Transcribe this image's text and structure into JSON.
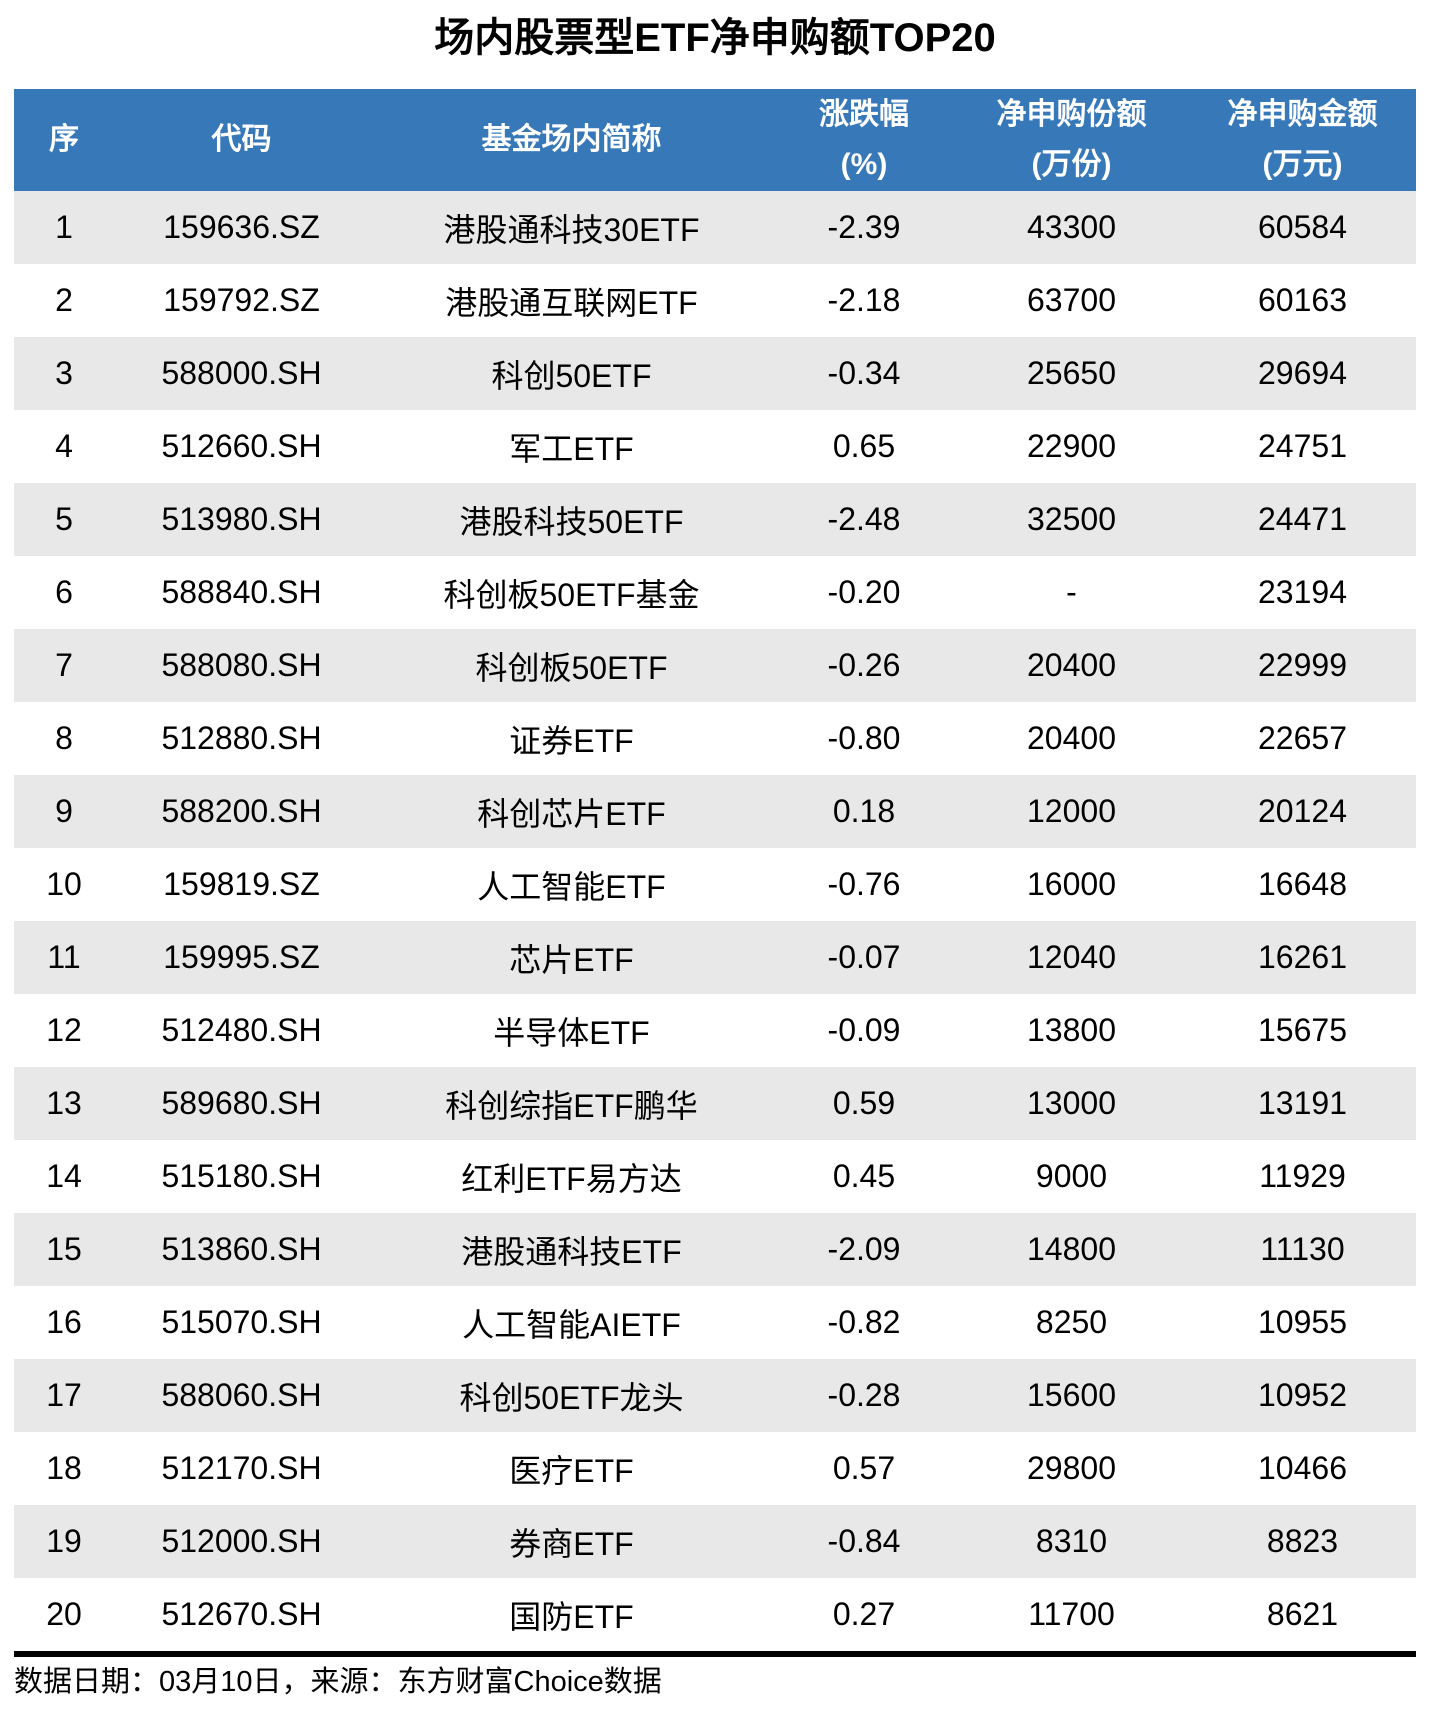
{
  "title": "场内股票型ETF净申购额TOP20",
  "footer": {
    "text": "数据日期：03月10日，来源：东方财富Choice数据"
  },
  "colors": {
    "header_bg": "#3778B8",
    "header_text": "#FFFFFF",
    "row_alt_bg": "#E8E8E8",
    "separator": "#000000"
  },
  "chart_data": {
    "type": "table",
    "title": "场内股票型ETF净申购额TOP20",
    "columns": [
      {
        "key": "rank",
        "label": "序",
        "unit": ""
      },
      {
        "key": "code",
        "label": "代码",
        "unit": ""
      },
      {
        "key": "name",
        "label": "基金场内简称",
        "unit": ""
      },
      {
        "key": "change",
        "label": "涨跌幅",
        "unit": "(%)"
      },
      {
        "key": "netShares",
        "label": "净申购份额",
        "unit": "(万份)"
      },
      {
        "key": "netAmount",
        "label": "净申购金额",
        "unit": "(万元)"
      }
    ],
    "rows": [
      [
        "1",
        "159636.SZ",
        "港股通科技30ETF",
        "-2.39",
        "43300",
        "60584"
      ],
      [
        "2",
        "159792.SZ",
        "港股通互联网ETF",
        "-2.18",
        "63700",
        "60163"
      ],
      [
        "3",
        "588000.SH",
        "科创50ETF",
        "-0.34",
        "25650",
        "29694"
      ],
      [
        "4",
        "512660.SH",
        "军工ETF",
        "0.65",
        "22900",
        "24751"
      ],
      [
        "5",
        "513980.SH",
        "港股科技50ETF",
        "-2.48",
        "32500",
        "24471"
      ],
      [
        "6",
        "588840.SH",
        "科创板50ETF基金",
        "-0.20",
        "-",
        "23194"
      ],
      [
        "7",
        "588080.SH",
        "科创板50ETF",
        "-0.26",
        "20400",
        "22999"
      ],
      [
        "8",
        "512880.SH",
        "证券ETF",
        "-0.80",
        "20400",
        "22657"
      ],
      [
        "9",
        "588200.SH",
        "科创芯片ETF",
        "0.18",
        "12000",
        "20124"
      ],
      [
        "10",
        "159819.SZ",
        "人工智能ETF",
        "-0.76",
        "16000",
        "16648"
      ],
      [
        "11",
        "159995.SZ",
        "芯片ETF",
        "-0.07",
        "12040",
        "16261"
      ],
      [
        "12",
        "512480.SH",
        "半导体ETF",
        "-0.09",
        "13800",
        "15675"
      ],
      [
        "13",
        "589680.SH",
        "科创综指ETF鹏华",
        "0.59",
        "13000",
        "13191"
      ],
      [
        "14",
        "515180.SH",
        "红利ETF易方达",
        "0.45",
        "9000",
        "11929"
      ],
      [
        "15",
        "513860.SH",
        "港股通科技ETF",
        "-2.09",
        "14800",
        "11130"
      ],
      [
        "16",
        "515070.SH",
        "人工智能AIETF",
        "-0.82",
        "8250",
        "10955"
      ],
      [
        "17",
        "588060.SH",
        "科创50ETF龙头",
        "-0.28",
        "15600",
        "10952"
      ],
      [
        "18",
        "512170.SH",
        "医疗ETF",
        "0.57",
        "29800",
        "10466"
      ],
      [
        "19",
        "512000.SH",
        "券商ETF",
        "-0.84",
        "8310",
        "8823"
      ],
      [
        "20",
        "512670.SH",
        "国防ETF",
        "0.27",
        "11700",
        "8621"
      ]
    ]
  }
}
